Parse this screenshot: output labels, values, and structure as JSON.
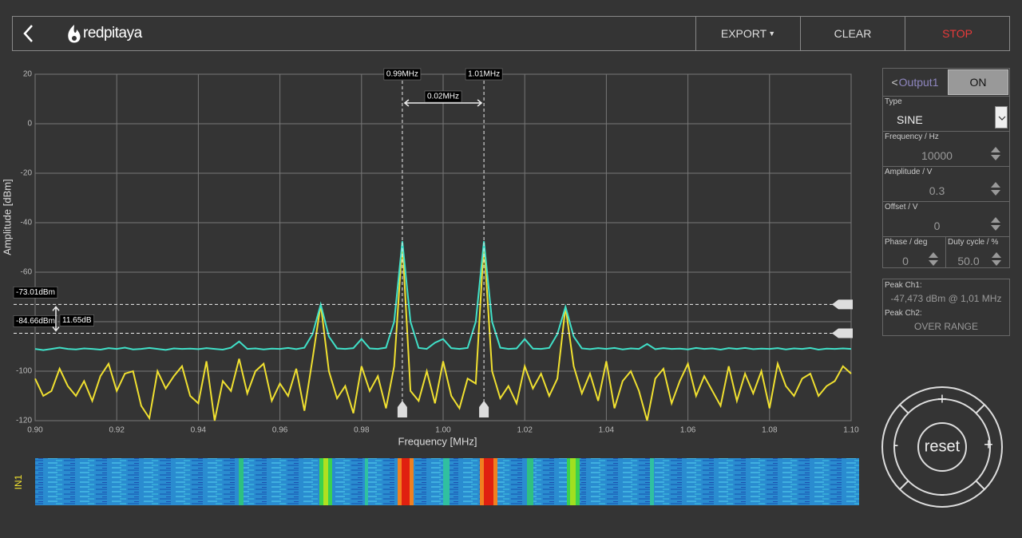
{
  "header": {
    "logo": "redpitaya",
    "buttons": [
      "EXPORT",
      "CLEAR",
      "STOP"
    ]
  },
  "chart_data": {
    "type": "line",
    "xlabel": "Frequency [MHz]",
    "ylabel": "Amplitude [dBm]",
    "x": [
      0.9,
      0.902,
      0.904,
      0.906,
      0.908,
      0.91,
      0.912,
      0.914,
      0.916,
      0.918,
      0.92,
      0.922,
      0.924,
      0.926,
      0.928,
      0.93,
      0.932,
      0.934,
      0.936,
      0.938,
      0.94,
      0.942,
      0.944,
      0.946,
      0.948,
      0.95,
      0.952,
      0.954,
      0.956,
      0.958,
      0.96,
      0.962,
      0.964,
      0.966,
      0.968,
      0.97,
      0.972,
      0.974,
      0.976,
      0.978,
      0.98,
      0.982,
      0.984,
      0.986,
      0.988,
      0.99,
      0.992,
      0.994,
      0.996,
      0.998,
      1.0,
      1.002,
      1.004,
      1.006,
      1.008,
      1.01,
      1.012,
      1.014,
      1.016,
      1.018,
      1.02,
      1.022,
      1.024,
      1.026,
      1.028,
      1.03,
      1.032,
      1.034,
      1.036,
      1.038,
      1.04,
      1.042,
      1.044,
      1.046,
      1.048,
      1.05,
      1.052,
      1.054,
      1.056,
      1.058,
      1.06,
      1.062,
      1.064,
      1.066,
      1.068,
      1.07,
      1.072,
      1.074,
      1.076,
      1.078,
      1.08,
      1.082,
      1.084,
      1.086,
      1.088,
      1.09,
      1.092,
      1.094,
      1.096,
      1.098,
      1.1
    ],
    "series": [
      {
        "color": "#40e0c8",
        "values": [
          -91,
          -91.5,
          -91,
          -90.5,
          -91,
          -91.2,
          -90.8,
          -91,
          -91.3,
          -90.7,
          -91,
          -90.5,
          -91.2,
          -91,
          -90.6,
          -91,
          -91.4,
          -90.8,
          -91,
          -90.9,
          -91.1,
          -90.7,
          -91,
          -91.3,
          -90.5,
          -88,
          -91,
          -90.8,
          -91.2,
          -90.9,
          -91,
          -90.6,
          -91.1,
          -90.5,
          -85,
          -73,
          -86,
          -90.8,
          -91,
          -90.7,
          -87,
          -90.8,
          -91,
          -90.5,
          -80,
          -47.5,
          -80,
          -90.6,
          -91,
          -88.5,
          -87,
          -90.7,
          -91,
          -90.6,
          -80,
          -47.5,
          -80,
          -90.5,
          -91,
          -90.8,
          -87,
          -90.9,
          -91,
          -90.6,
          -85,
          -74,
          -86,
          -90.8,
          -91.1,
          -90.7,
          -91,
          -90.6,
          -91.2,
          -90.8,
          -91,
          -89,
          -91.1,
          -90.7,
          -91,
          -90.9,
          -91.2,
          -90.6,
          -91,
          -90.8,
          -91.3,
          -90.7,
          -91,
          -90.6,
          -91.1,
          -90.9,
          -91,
          -90.7,
          -91.2,
          -90.8,
          -91,
          -90.6,
          -91.3,
          -90.9,
          -91,
          -90.8,
          -91
        ]
      },
      {
        "color": "#f0e030",
        "values": [
          -103,
          -110,
          -108,
          -99,
          -106,
          -110,
          -104,
          -112,
          -102,
          -97,
          -108,
          -101,
          -100,
          -114,
          -119,
          -100,
          -107,
          -102,
          -98,
          -110,
          -113,
          -96,
          -120,
          -104,
          -108,
          -95,
          -109,
          -100,
          -97,
          -112,
          -105,
          -110,
          -99,
          -116,
          -95,
          -73,
          -100,
          -111,
          -106,
          -117,
          -98,
          -108,
          -102,
          -115,
          -98,
          -48,
          -108,
          -112,
          -100,
          -113,
          -96,
          -110,
          -115,
          -103,
          -105,
          -48,
          -100,
          -111,
          -106,
          -113,
          -98,
          -107,
          -101,
          -110,
          -103,
          -74,
          -98,
          -109,
          -101,
          -112,
          -96,
          -115,
          -104,
          -100,
          -108,
          -120,
          -103,
          -99,
          -113,
          -104,
          -97,
          -110,
          -102,
          -108,
          -114,
          -98,
          -112,
          -101,
          -109,
          -100,
          -115,
          -97,
          -106,
          -110,
          -103,
          -101,
          -110,
          -106,
          -104,
          -98,
          -101
        ]
      }
    ],
    "xlim": [
      0.9,
      1.1
    ],
    "ylim": [
      -120,
      20
    ],
    "xticks": [
      {
        "value": 0.9,
        "label": "0.90"
      },
      0.92,
      0.94,
      0.96,
      0.98,
      {
        "value": 1.0,
        "label": "1.00"
      },
      1.02,
      1.04,
      1.06,
      1.08,
      {
        "value": 1.1,
        "label": "1.10"
      }
    ],
    "yticks": [
      20,
      0,
      -20,
      -40,
      -60,
      -80,
      -100,
      -120
    ],
    "grid": true,
    "x_cursors": [
      {
        "value": 0.99,
        "label": "0.99MHz"
      },
      {
        "value": 1.01,
        "label": "1.01MHz"
      }
    ],
    "x_cursor_delta": "0.02MHz",
    "y_cursors": [
      {
        "value": -73.01,
        "label": "-73.01dBm"
      },
      {
        "value": -84.66,
        "label": "-84.66dBm"
      }
    ],
    "y_cursor_delta": "11.65dB"
  },
  "waterfall": {
    "label": "IN1"
  },
  "generator": {
    "output": "Output1",
    "state": "ON",
    "type": {
      "label": "Type",
      "value": "SINE"
    },
    "frequency": {
      "label": "Frequency / Hz",
      "value": "10000"
    },
    "amplitude": {
      "label": "Amplitude / V",
      "value": "0.3"
    },
    "offset": {
      "label": "Offset / V",
      "value": "0"
    },
    "phase": {
      "label": "Phase / deg",
      "value": "0"
    },
    "duty": {
      "label": "Duty cycle / %",
      "value": "50.0"
    }
  },
  "peaks": [
    {
      "label": "Peak Ch1:",
      "value": "-47,473 dBm @ 1,01 MHz"
    },
    {
      "label": "Peak Ch2:",
      "value": "OVER RANGE"
    }
  ],
  "controls": {
    "up": "+",
    "down": "-",
    "left": "-",
    "right": "+",
    "reset": "reset"
  }
}
